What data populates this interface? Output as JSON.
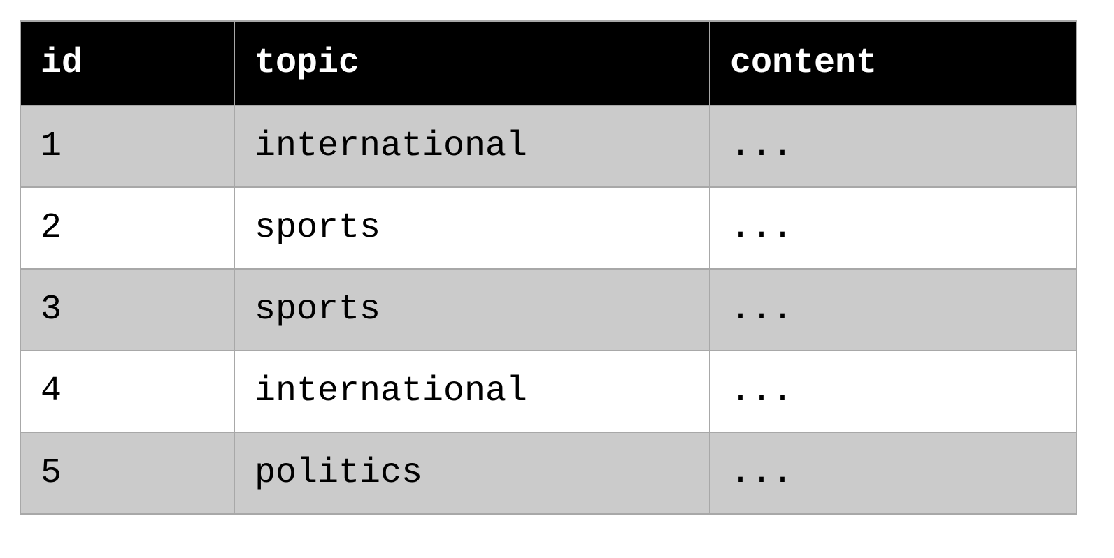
{
  "table": {
    "columns": [
      "id",
      "topic",
      "content"
    ],
    "rows": [
      {
        "id": "1",
        "topic": "international",
        "content": "..."
      },
      {
        "id": "2",
        "topic": "sports",
        "content": "..."
      },
      {
        "id": "3",
        "topic": "sports",
        "content": "..."
      },
      {
        "id": "4",
        "topic": "international",
        "content": "..."
      },
      {
        "id": "5",
        "topic": "politics",
        "content": "..."
      }
    ],
    "colors": {
      "header_bg": "#000000",
      "header_text": "#ffffff",
      "row_odd_bg": "#cbcbcb",
      "row_even_bg": "#ffffff",
      "border": "#a8a8a8"
    }
  }
}
